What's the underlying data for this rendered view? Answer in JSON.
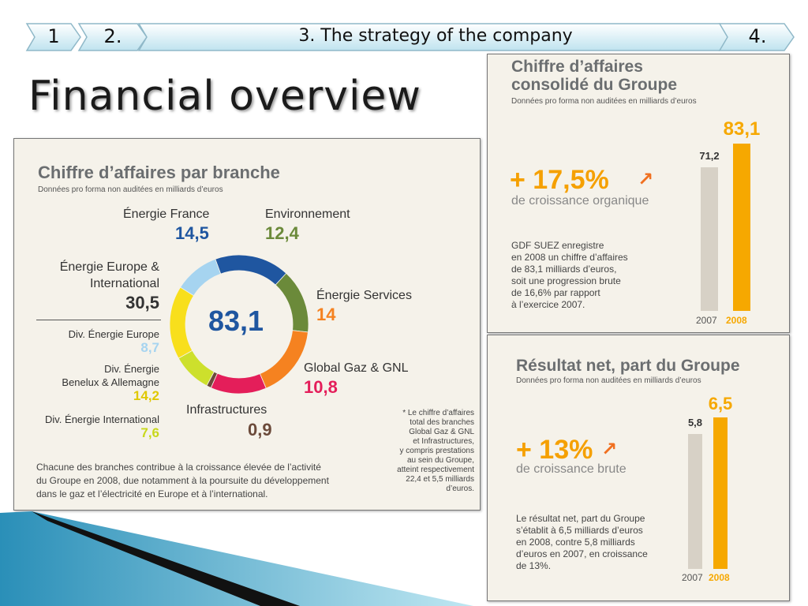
{
  "nav": [
    "1",
    "2.",
    "3. The strategy of the company",
    "4."
  ],
  "page_title": "Financial overview",
  "donut_panel": {
    "title": "Chiffre d’affaires par branche",
    "subtitle": "Données pro forma non auditées en milliards d’euros",
    "total": "83,1",
    "labels": {
      "energie_france": "Énergie France",
      "energie_france_value": "14,5",
      "environnement": "Environnement",
      "environnement_value": "12,4",
      "energie_services": "Énergie Services",
      "energie_services_value": "14",
      "global_gaz": "Global Gaz & GNL",
      "global_gaz_value": "10,8",
      "infrastructures": "Infrastructures",
      "infrastructures_value": "0,9",
      "energie_europe_line1": "Énergie Europe &",
      "energie_europe_line2": "International",
      "energie_europe_value": "30,5",
      "div_europe": "Div. Énergie Europe",
      "div_europe_value": "8,7",
      "div_benelux_line1": "Div. Énergie",
      "div_benelux_line2": "Benelux & Allemagne",
      "div_benelux_value": "14,2",
      "div_international": "Div. Énergie International",
      "div_international_value": "7,6"
    },
    "footnote": [
      "* Le chiffre d’affaires",
      "total des branches",
      "Global Gaz & GNL",
      "et Infrastructures,",
      "y compris prestations",
      "au sein du Groupe,",
      "atteint respectivement",
      "22,4 et 5,5 milliards",
      "d’euros."
    ],
    "description": [
      "Chacune des branches contribue à la croissance élevée de l’activité",
      "du Groupe en 2008, due notamment à la poursuite du développement",
      "dans le gaz et l’électricité en Europe et à l’international."
    ]
  },
  "revenue_panel": {
    "title_line1": "Chiffre d’affaires",
    "title_line2": "consolidé du Groupe",
    "subtitle": "Données pro forma non auditées en milliards d’euros",
    "growth": "+ 17,5%",
    "growth_sub": "de croissance organique",
    "text": [
      "GDF SUEZ enregistre",
      "en 2008 un chiffre d’affaires",
      "de 83,1 milliards d’euros,",
      "soit une progression brute",
      "de 16,6% par rapport",
      "à l’exercice 2007."
    ],
    "bar_labels": [
      "71,2",
      "83,1"
    ],
    "years": [
      "2007",
      "2008"
    ]
  },
  "net_panel": {
    "title": "Résultat net, part du Groupe",
    "subtitle": "Données pro forma non auditées en milliards d’euros",
    "growth": "+ 13%",
    "growth_sub": "de croissance brute",
    "text": [
      "Le résultat net, part du Groupe",
      "s’établit à 6,5 milliards d’euros",
      "en 2008, contre 5,8 milliards",
      "d’euros en 2007, en croissance",
      "de 13%."
    ],
    "bar_labels": [
      "5,8",
      "6,5"
    ],
    "years": [
      "2007",
      "2008"
    ]
  },
  "chart_data": [
    {
      "type": "pie",
      "title": "Chiffre d’affaires par branche",
      "subtitle": "Données pro forma non auditées en milliards d’euros",
      "total": 83.1,
      "categories": [
        "Énergie France",
        "Environnement",
        "Énergie Services",
        "Global Gaz & GNL",
        "Infrastructures",
        "Div. Énergie International",
        "Div. Énergie Benelux & Allemagne",
        "Div. Énergie Europe"
      ],
      "values": [
        14.5,
        12.4,
        14,
        10.8,
        0.9,
        7.6,
        14.2,
        8.7
      ],
      "colors": [
        "#1f56a0",
        "#6b8a3a",
        "#f58220",
        "#e41e5a",
        "#6b4a3a",
        "#cde02c",
        "#f8df1c",
        "#a6d4f0"
      ]
    },
    {
      "type": "bar",
      "title": "Chiffre d’affaires consolidé du Groupe",
      "subtitle": "Données pro forma non auditées en milliards d’euros",
      "categories": [
        "2007",
        "2008"
      ],
      "values": [
        71.2,
        83.1
      ],
      "colors": [
        "#d7d1c6",
        "#f6a800"
      ]
    },
    {
      "type": "bar",
      "title": "Résultat net, part du Groupe",
      "subtitle": "Données pro forma non auditées en milliards d’euros",
      "categories": [
        "2007",
        "2008"
      ],
      "values": [
        5.8,
        6.5
      ],
      "colors": [
        "#d7d1c6",
        "#f6a800"
      ]
    }
  ],
  "colors": {
    "accent": "#f6a800",
    "grey_bar": "#d7d1c6",
    "panel_bg": "#f5f2ea"
  }
}
